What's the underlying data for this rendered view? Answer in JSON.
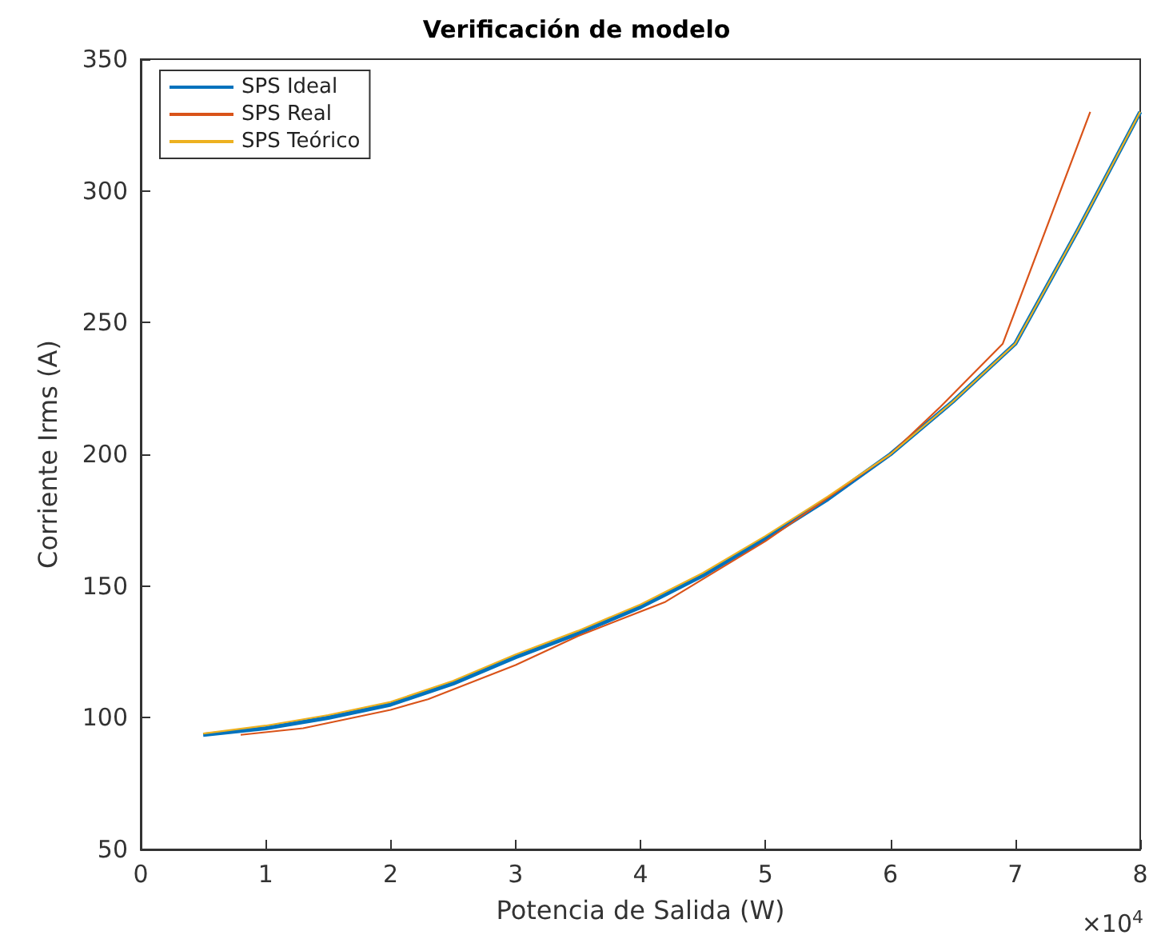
{
  "chart_data": {
    "type": "line",
    "title": "Verificación de modelo",
    "xlabel": "Potencia de Salida (W)",
    "ylabel": "Corriente Irms (A)",
    "annotations": [
      "×10$^{4}$"
    ],
    "xlim": [
      0,
      8
    ],
    "xticks": [
      0,
      1,
      2,
      3,
      4,
      5,
      6,
      7,
      8
    ],
    "ylim": [
      50,
      350
    ],
    "yticks": [
      50,
      100,
      150,
      200,
      250,
      300,
      350
    ],
    "grid": false,
    "legend": "top left",
    "marker": "none",
    "line_style": "solid",
    "series": [
      {
        "name": "SPS Ideal",
        "color": "#0072bd",
        "x": [
          0.5,
          1,
          1.5,
          2,
          2.5,
          3,
          3.5,
          4,
          4.5,
          5,
          5.5,
          6,
          6.5,
          7,
          7.5,
          8
        ],
        "values": [
          93.5,
          96,
          100,
          105,
          113,
          123,
          132,
          142,
          154,
          168,
          183,
          200,
          220,
          242,
          285,
          330
        ]
      },
      {
        "name": "SPS Real",
        "color": "#d95319",
        "x": [
          0.8,
          1.3,
          2,
          2.3,
          3,
          3.5,
          4.2,
          5,
          6,
          6.4,
          6.9,
          7.6
        ],
        "values": [
          93.5,
          96,
          103,
          107,
          120,
          131,
          144,
          167,
          200,
          218,
          242,
          330
        ]
      },
      {
        "name": "SPS Teórico",
        "color": "#edb120",
        "x": [
          0.5,
          1,
          1.5,
          2,
          2.5,
          3,
          3.5,
          4,
          4.5,
          5,
          5.5,
          6,
          6.5,
          7,
          7.5,
          8
        ],
        "values": [
          94,
          97,
          101,
          106,
          114,
          124,
          133,
          143,
          155,
          169,
          184,
          200,
          220,
          242,
          285,
          330
        ]
      }
    ]
  }
}
